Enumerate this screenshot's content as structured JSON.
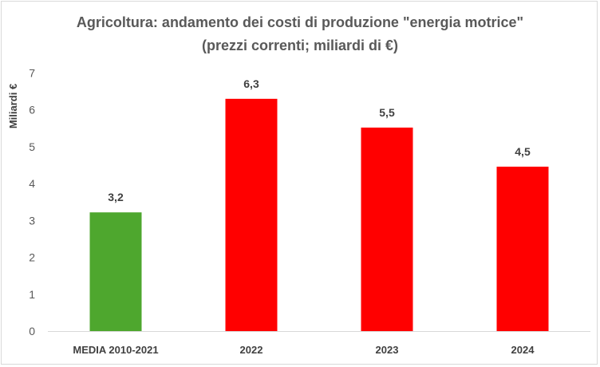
{
  "chart_data": {
    "type": "bar",
    "title_lines": [
      "Agricoltura: andamento dei costi di produzione \"energia motrice\"",
      "(prezzi correnti; miliardi di €)"
    ],
    "xlabel": "",
    "ylabel": "Miliardi €",
    "categories": [
      "MEDIA 2010-2021",
      "2022",
      "2023",
      "2024"
    ],
    "values": [
      3.22,
      6.3,
      5.52,
      4.46
    ],
    "value_labels": [
      "3,2",
      "6,3",
      "5,5",
      "4,5"
    ],
    "bar_colors": [
      "#4ea72e",
      "#ff0000",
      "#ff0000",
      "#ff0000"
    ],
    "ylim": [
      0,
      7
    ],
    "yticks": [
      "0",
      "1",
      "2",
      "3",
      "4",
      "5",
      "6",
      "7"
    ],
    "grid": false,
    "legend": "none"
  }
}
